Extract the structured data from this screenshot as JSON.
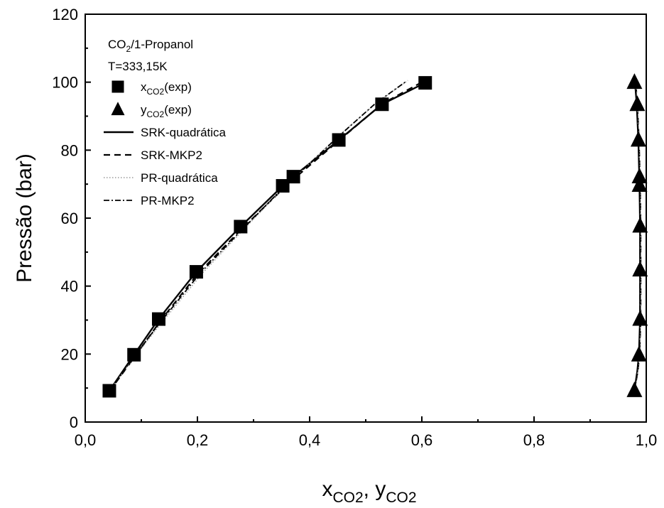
{
  "chart_data": {
    "type": "scatter",
    "title": "",
    "annotations": {
      "system": {
        "base": "CO",
        "sub": "2",
        "rest": "/1-Propanol"
      },
      "temperature": "T=333,15K"
    },
    "xlabel": {
      "p1": "x",
      "s1": "CO2",
      "p2": ", y",
      "s2": "CO2"
    },
    "ylabel": "Pressão (bar)",
    "xlim": [
      0.0,
      1.0
    ],
    "ylim": [
      0,
      120
    ],
    "x_ticks": [
      "0,0",
      "0,2",
      "0,4",
      "0,6",
      "0,8",
      "1,0"
    ],
    "y_ticks": [
      "0",
      "20",
      "40",
      "60",
      "80",
      "100",
      "120"
    ],
    "grid": false,
    "legend_position": "top-left",
    "series": [
      {
        "name": "xCO2(exp)",
        "legend": {
          "base": "x",
          "sub": "CO2",
          "rest": "(exp)"
        },
        "kind": "marker",
        "marker": "square",
        "points": [
          [
            0.043,
            9.2
          ],
          [
            0.087,
            19.8
          ],
          [
            0.131,
            30.3
          ],
          [
            0.198,
            44.2
          ],
          [
            0.277,
            57.5
          ],
          [
            0.352,
            69.5
          ],
          [
            0.371,
            72.2
          ],
          [
            0.452,
            83.0
          ],
          [
            0.529,
            93.5
          ],
          [
            0.606,
            99.8
          ]
        ]
      },
      {
        "name": "yCO2(exp)",
        "legend": {
          "base": "y",
          "sub": "CO2",
          "rest": "(exp)"
        },
        "kind": "marker",
        "marker": "triangle",
        "points": [
          [
            0.979,
            9.3
          ],
          [
            0.987,
            19.8
          ],
          [
            0.989,
            30.3
          ],
          [
            0.989,
            44.8
          ],
          [
            0.989,
            57.7
          ],
          [
            0.988,
            69.7
          ],
          [
            0.988,
            72.2
          ],
          [
            0.986,
            83.0
          ],
          [
            0.984,
            93.5
          ],
          [
            0.979,
            100.0
          ]
        ]
      },
      {
        "name": "SRK-quadrática",
        "kind": "line",
        "dash": "solid",
        "x_branch": [
          [
            0.043,
            9.2
          ],
          [
            0.087,
            19.8
          ],
          [
            0.131,
            30.3
          ],
          [
            0.198,
            44.2
          ],
          [
            0.277,
            57.5
          ],
          [
            0.352,
            69.5
          ],
          [
            0.371,
            72.2
          ],
          [
            0.452,
            83.0
          ],
          [
            0.529,
            93.5
          ],
          [
            0.606,
            99.8
          ]
        ],
        "y_branch": [
          [
            0.979,
            9.3
          ],
          [
            0.984,
            15.0
          ],
          [
            0.987,
            19.8
          ],
          [
            0.989,
            30.3
          ],
          [
            0.989,
            44.8
          ],
          [
            0.989,
            57.7
          ],
          [
            0.988,
            69.7
          ],
          [
            0.986,
            83.0
          ],
          [
            0.983,
            93.5
          ],
          [
            0.98,
            100.0
          ]
        ]
      },
      {
        "name": "SRK-MKP2",
        "kind": "line",
        "dash": "dashed",
        "x_branch": [
          [
            0.043,
            9.0
          ],
          [
            0.09,
            19.6
          ],
          [
            0.135,
            30.0
          ],
          [
            0.2,
            43.5
          ],
          [
            0.28,
            57.0
          ],
          [
            0.355,
            69.0
          ],
          [
            0.375,
            72.0
          ],
          [
            0.455,
            83.2
          ],
          [
            0.53,
            93.7
          ],
          [
            0.6,
            100.0
          ]
        ],
        "y_branch": [
          [
            0.979,
            9.3
          ],
          [
            0.985,
            15.0
          ],
          [
            0.988,
            19.8
          ],
          [
            0.99,
            30.3
          ],
          [
            0.99,
            44.8
          ],
          [
            0.99,
            57.7
          ],
          [
            0.989,
            69.7
          ],
          [
            0.987,
            83.0
          ],
          [
            0.984,
            93.5
          ],
          [
            0.981,
            100.0
          ]
        ]
      },
      {
        "name": "PR-quadrática",
        "kind": "line",
        "dash": "dotted",
        "x_branch": [
          [
            0.043,
            9.2
          ],
          [
            0.09,
            19.6
          ],
          [
            0.14,
            30.0
          ],
          [
            0.21,
            44.0
          ],
          [
            0.29,
            58.0
          ],
          [
            0.36,
            70.0
          ],
          [
            0.38,
            73.0
          ],
          [
            0.45,
            84.0
          ],
          [
            0.52,
            94.0
          ],
          [
            0.575,
            100.5
          ]
        ],
        "y_branch": [
          [
            0.979,
            9.3
          ],
          [
            0.985,
            15.0
          ],
          [
            0.988,
            19.8
          ],
          [
            0.99,
            30.3
          ],
          [
            0.99,
            44.8
          ],
          [
            0.99,
            57.7
          ],
          [
            0.989,
            69.7
          ],
          [
            0.987,
            83.0
          ],
          [
            0.984,
            93.5
          ],
          [
            0.981,
            100.0
          ]
        ]
      },
      {
        "name": "PR-MKP2",
        "kind": "line",
        "dash": "dashdot",
        "x_branch": [
          [
            0.043,
            9.0
          ],
          [
            0.088,
            19.5
          ],
          [
            0.137,
            30.0
          ],
          [
            0.205,
            43.8
          ],
          [
            0.285,
            57.5
          ],
          [
            0.356,
            69.5
          ],
          [
            0.377,
            72.5
          ],
          [
            0.448,
            83.5
          ],
          [
            0.517,
            93.7
          ],
          [
            0.57,
            100.0
          ]
        ],
        "y_branch": [
          [
            0.979,
            9.3
          ],
          [
            0.984,
            15.0
          ],
          [
            0.987,
            19.8
          ],
          [
            0.989,
            30.3
          ],
          [
            0.989,
            44.8
          ],
          [
            0.989,
            57.7
          ],
          [
            0.988,
            69.7
          ],
          [
            0.986,
            83.0
          ],
          [
            0.983,
            93.5
          ],
          [
            0.98,
            100.0
          ]
        ]
      }
    ]
  }
}
